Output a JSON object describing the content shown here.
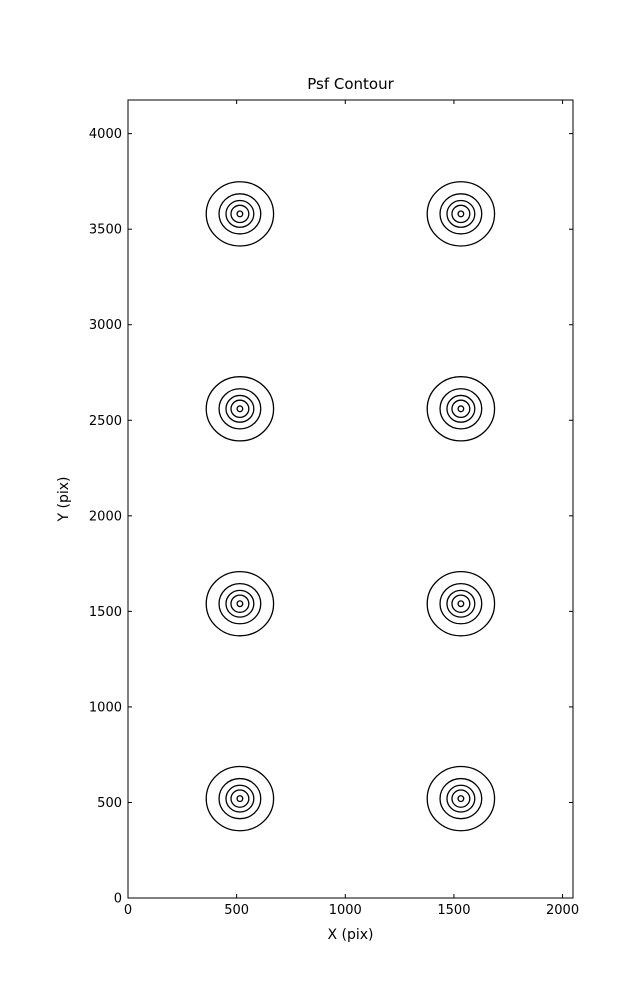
{
  "figure": {
    "background_color": "#ffffff",
    "line_color": "#000000",
    "text_color": "#000000"
  },
  "chart_data": {
    "type": "contour",
    "title": "Psf Contour",
    "xlabel": "X (pix)",
    "ylabel": "Y (pix)",
    "xlim": [
      0,
      2048
    ],
    "ylim": [
      0,
      4176
    ],
    "x_ticks": [
      0,
      500,
      1000,
      1500,
      2000
    ],
    "y_ticks": [
      0,
      500,
      1000,
      1500,
      2000,
      2500,
      3000,
      3500,
      4000
    ],
    "grid": false,
    "legend": "none",
    "tick_direction": "in",
    "contours": {
      "description": "8 point-spread-function sources, each drawn as 5 nested closed contour levels",
      "sources": [
        {
          "x": 515,
          "y": 3580
        },
        {
          "x": 1532,
          "y": 3580
        },
        {
          "x": 515,
          "y": 2560
        },
        {
          "x": 1532,
          "y": 2560
        },
        {
          "x": 515,
          "y": 1540
        },
        {
          "x": 1532,
          "y": 1540
        },
        {
          "x": 515,
          "y": 520
        },
        {
          "x": 1532,
          "y": 520
        }
      ],
      "ring_radii_xy": [
        [
          155,
          168
        ],
        [
          96,
          105
        ],
        [
          64,
          70
        ],
        [
          41,
          45
        ],
        [
          13,
          15
        ]
      ]
    }
  }
}
